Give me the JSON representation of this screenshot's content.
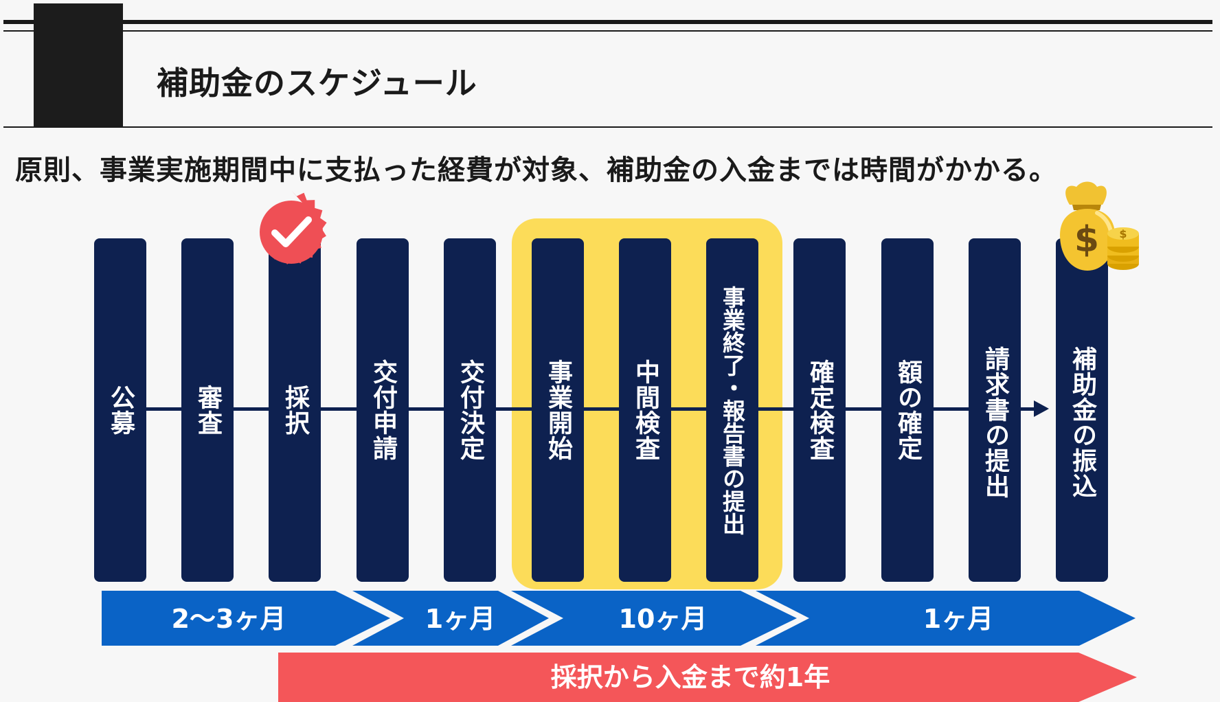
{
  "header": {
    "title": "補助金のスケジュール"
  },
  "subtitle": "原則、事業実施期間中に支払った経費が対象、補助金の入金までは時間がかかる。",
  "steps": [
    {
      "label": "公募"
    },
    {
      "label": "審査"
    },
    {
      "label": "採択"
    },
    {
      "label": "交付申請"
    },
    {
      "label": "交付決定"
    },
    {
      "label": "事業開始"
    },
    {
      "label": "中間検査"
    },
    {
      "label": "事業終了・報告書の提出"
    },
    {
      "label": "確定検査"
    },
    {
      "label": "額の確定"
    },
    {
      "label": "請求書の提出"
    },
    {
      "label": "補助金の振込"
    }
  ],
  "durations": [
    "2〜3ヶ月",
    "1ヶ月",
    "10ヶ月",
    "1ヶ月"
  ],
  "result_banner": "採択から入金まで約1年",
  "icons": {
    "check_badge": "check-badge-icon",
    "money": "money-bag-icon"
  },
  "colors": {
    "step_fill": "#0e2150",
    "highlight": "#fcdc59",
    "duration_blue": "#0a63c6",
    "result_red": "#f45659",
    "badge_red": "#ef4f55",
    "gold": "#f4c430"
  }
}
